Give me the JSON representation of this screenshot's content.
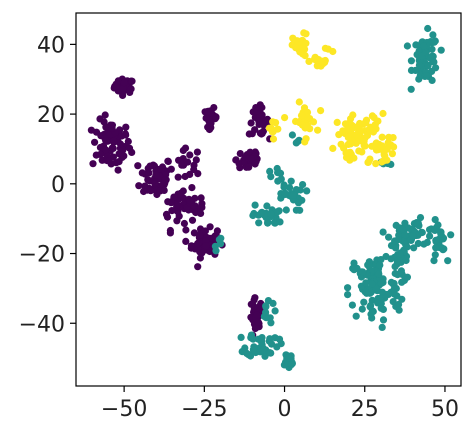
{
  "chart_data": {
    "type": "scatter",
    "title": "",
    "xlabel": "",
    "ylabel": "",
    "xlim": [
      -65,
      55
    ],
    "ylim": [
      -58,
      49
    ],
    "grid": false,
    "legend": "none",
    "xticks": [
      -50,
      -25,
      0,
      25,
      50
    ],
    "yticks": [
      40,
      20,
      0,
      -20,
      -40
    ],
    "xtick_labels": [
      "−50",
      "−25",
      "0",
      "25",
      "50"
    ],
    "ytick_labels": [
      "40",
      "20",
      "0",
      "−20",
      "−40"
    ],
    "colors": {
      "purple": "#440154",
      "teal": "#21918c",
      "yellow": "#fde725"
    },
    "series": [
      {
        "color": "#440154",
        "clusters": [
          {
            "cx": -50,
            "cy": 28,
            "sx": 1.5,
            "sy": 1.0,
            "n": 45
          },
          {
            "cx": -54,
            "cy": 11,
            "sx": 3.0,
            "sy": 3.5,
            "n": 70
          },
          {
            "cx": -40,
            "cy": 2,
            "sx": 2.5,
            "sy": 3.0,
            "n": 55
          },
          {
            "cx": -33,
            "cy": -6,
            "sx": 2.5,
            "sy": 3.5,
            "n": 40
          },
          {
            "cx": -25,
            "cy": -17,
            "sx": 2.0,
            "sy": 2.0,
            "n": 60
          },
          {
            "cx": -23,
            "cy": 19,
            "sx": 1.0,
            "sy": 1.3,
            "n": 25
          },
          {
            "cx": -8,
            "cy": 18,
            "sx": 1.5,
            "sy": 2.0,
            "n": 35
          },
          {
            "cx": -11,
            "cy": 7,
            "sx": 2.0,
            "sy": 2.0,
            "n": 30
          },
          {
            "cx": -28,
            "cy": -6,
            "sx": 2.0,
            "sy": 1.5,
            "n": 20
          },
          {
            "cx": -9,
            "cy": -39,
            "sx": 1.0,
            "sy": 3.0,
            "n": 30
          },
          {
            "cx": -30,
            "cy": 6,
            "sx": 2.0,
            "sy": 2.0,
            "n": 15
          }
        ]
      },
      {
        "color": "#21918c",
        "clusters": [
          {
            "cx": 44,
            "cy": 36,
            "sx": 2.0,
            "sy": 3.5,
            "n": 60
          },
          {
            "cx": 40,
            "cy": -14,
            "sx": 4.0,
            "sy": 1.8,
            "n": 45
          },
          {
            "cx": 48,
            "cy": -17,
            "sx": 1.2,
            "sy": 3.0,
            "n": 25
          },
          {
            "cx": 28,
            "cy": -30,
            "sx": 4.0,
            "sy": 5.0,
            "n": 100
          },
          {
            "cx": 36,
            "cy": -22,
            "sx": 1.5,
            "sy": 5.0,
            "n": 35
          },
          {
            "cx": -7,
            "cy": -46,
            "sx": 2.5,
            "sy": 1.8,
            "n": 40
          },
          {
            "cx": 1,
            "cy": -51,
            "sx": 1.0,
            "sy": 1.5,
            "n": 20
          },
          {
            "cx": -6,
            "cy": -37,
            "sx": 1.5,
            "sy": 1.5,
            "n": 12
          },
          {
            "cx": 1,
            "cy": -3,
            "sx": 2.5,
            "sy": 2.5,
            "n": 25
          },
          {
            "cx": -5,
            "cy": -9,
            "sx": 2.5,
            "sy": 1.5,
            "n": 25
          },
          {
            "cx": -3,
            "cy": 3,
            "sx": 1.0,
            "sy": 1.0,
            "n": 6
          },
          {
            "cx": 3,
            "cy": 13,
            "sx": 0.8,
            "sy": 0.8,
            "n": 4
          },
          {
            "cx": 32,
            "cy": 6,
            "sx": 1.0,
            "sy": 0.5,
            "n": 5
          },
          {
            "cx": -21,
            "cy": -17,
            "sx": 0.8,
            "sy": 1.0,
            "n": 5
          }
        ]
      },
      {
        "color": "#fde725",
        "clusters": [
          {
            "cx": 5,
            "cy": 39,
            "sx": 1.2,
            "sy": 2.0,
            "n": 25
          },
          {
            "cx": 11,
            "cy": 35,
            "sx": 1.5,
            "sy": 0.8,
            "n": 15
          },
          {
            "cx": 14,
            "cy": 38,
            "sx": 0.6,
            "sy": 0.6,
            "n": 3
          },
          {
            "cx": 24,
            "cy": 14,
            "sx": 4.0,
            "sy": 3.0,
            "n": 70
          },
          {
            "cx": 30,
            "cy": 10,
            "sx": 2.5,
            "sy": 2.0,
            "n": 25
          },
          {
            "cx": 6,
            "cy": 18,
            "sx": 2.0,
            "sy": 2.5,
            "n": 30
          },
          {
            "cx": -3,
            "cy": 16,
            "sx": 1.0,
            "sy": 1.0,
            "n": 8
          },
          {
            "cx": 20,
            "cy": 8,
            "sx": 1.0,
            "sy": 1.0,
            "n": 8
          }
        ]
      }
    ]
  }
}
